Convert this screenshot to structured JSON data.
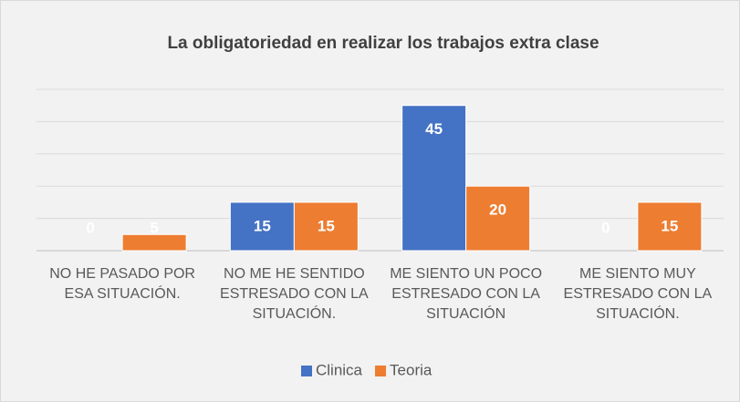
{
  "chart_data": {
    "type": "bar",
    "title": "La obligatoriedad en realizar los trabajos extra clase",
    "categories": [
      "NO HE PASADO POR ESA SITUACIÓN.",
      "NO ME HE SENTIDO ESTRESADO CON LA SITUACIÓN.",
      "ME SIENTO UN POCO ESTRESADO CON LA SITUACIÓN",
      "ME SIENTO MUY ESTRESADO CON LA SITUACIÓN."
    ],
    "series": [
      {
        "name": "Clinica",
        "color": "#4472c4",
        "values": [
          0,
          15,
          45,
          0
        ]
      },
      {
        "name": "Teoria",
        "color": "#ed7d31",
        "values": [
          5,
          15,
          20,
          15
        ]
      }
    ],
    "ylim": [
      0,
      50
    ],
    "yticks": [
      0,
      10,
      20,
      30,
      40,
      50
    ],
    "grid": true,
    "legend": "bottom"
  }
}
